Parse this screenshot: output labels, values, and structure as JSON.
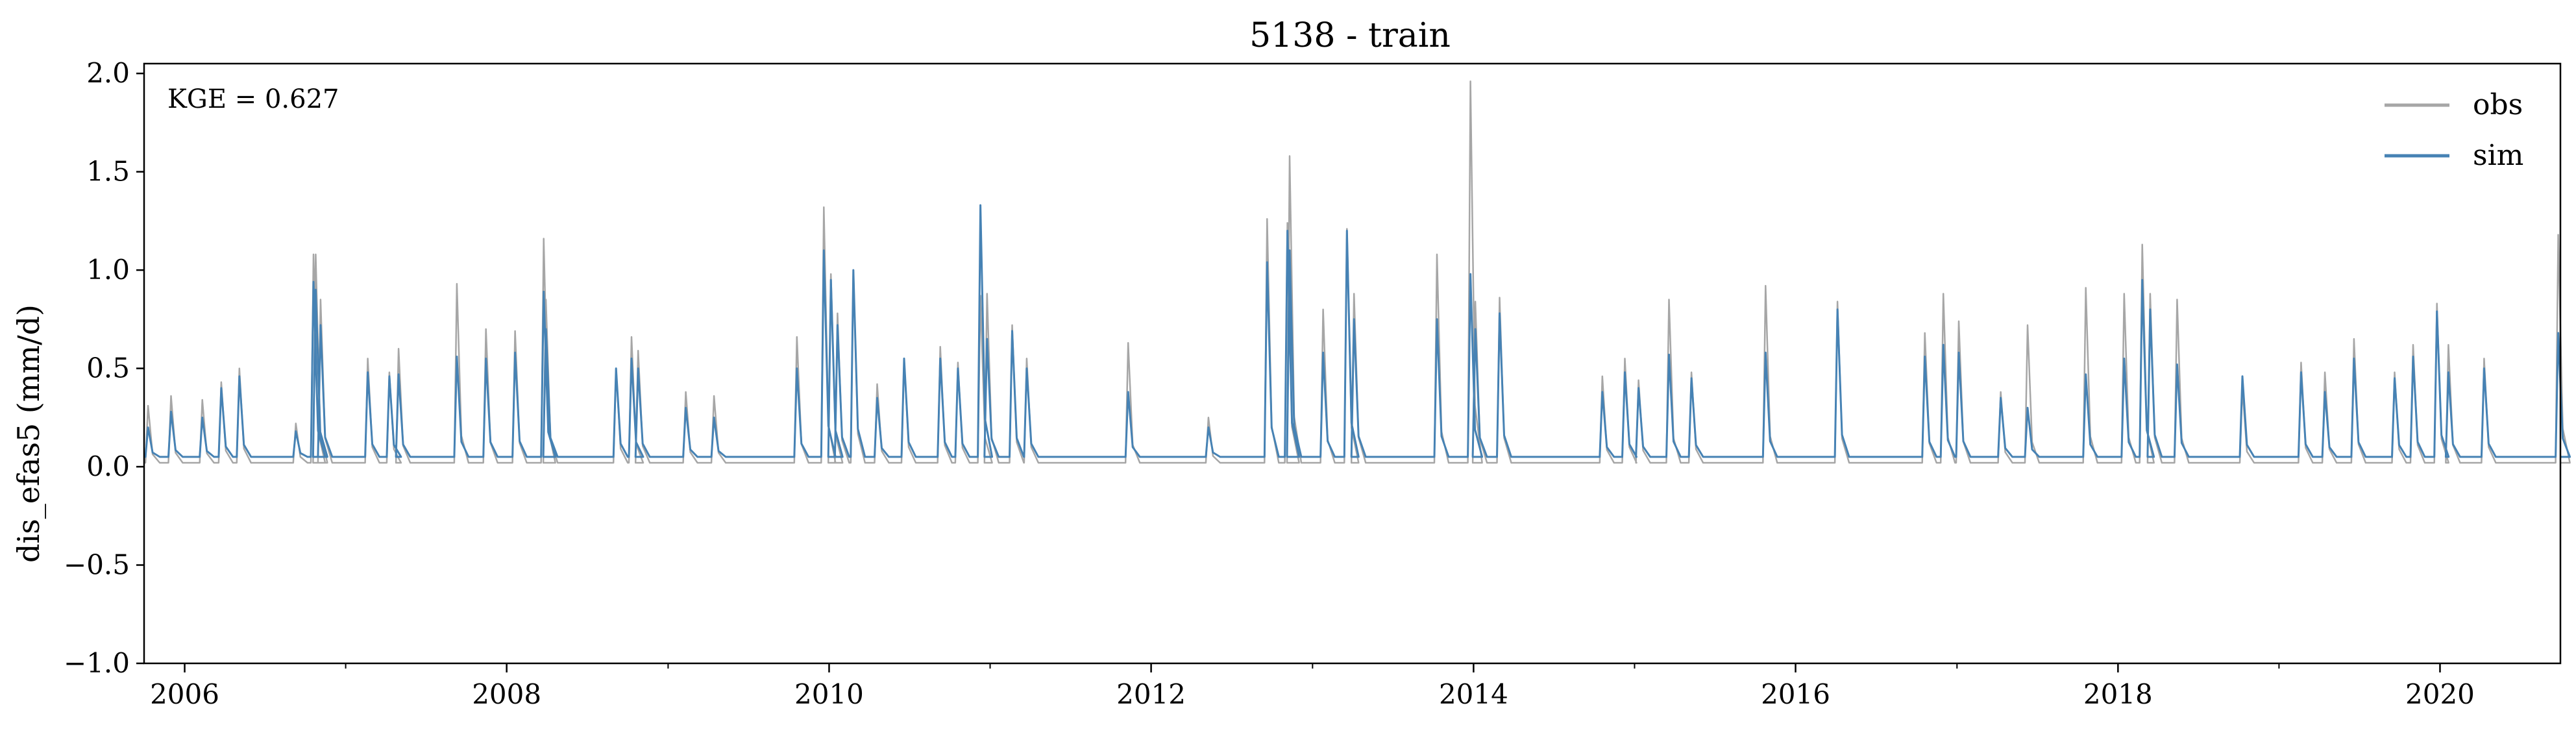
{
  "chart_data": {
    "type": "line",
    "title": "5138 - train",
    "xlabel": "",
    "ylabel": "dis_efas5 (mm/d)",
    "annotation": "KGE = 0.627",
    "xlim": [
      "2005-10-01",
      "2020-09-30"
    ],
    "ylim": [
      -1.0,
      2.05
    ],
    "grid": false,
    "legend": "top-right",
    "x_ticks": [
      "2006",
      "2008",
      "2010",
      "2012",
      "2014",
      "2016",
      "2018",
      "2020"
    ],
    "y_ticks": [
      "−1.0",
      "−0.5",
      "0.0",
      "0.5",
      "1.0",
      "1.5",
      "2.0"
    ],
    "y_tick_values": [
      -1.0,
      -0.5,
      0.0,
      0.5,
      1.0,
      1.5,
      2.0
    ],
    "base_flow": {
      "obs": 0.02,
      "sim": 0.05
    },
    "series": [
      {
        "name": "obs",
        "color": "#a6a6a6",
        "points": [
          [
            "2005-10-10",
            0.31
          ],
          [
            "2005-12-01",
            0.36
          ],
          [
            "2006-02-10",
            0.34
          ],
          [
            "2006-03-25",
            0.43
          ],
          [
            "2006-05-05",
            0.5
          ],
          [
            "2006-09-10",
            0.22
          ],
          [
            "2006-10-20",
            1.08
          ],
          [
            "2006-10-25",
            1.08
          ],
          [
            "2006-11-05",
            0.85
          ],
          [
            "2007-02-20",
            0.55
          ],
          [
            "2007-04-10",
            0.48
          ],
          [
            "2007-05-01",
            0.6
          ],
          [
            "2007-09-10",
            0.93
          ],
          [
            "2007-11-15",
            0.7
          ],
          [
            "2008-01-20",
            0.69
          ],
          [
            "2008-03-25",
            1.16
          ],
          [
            "2008-03-30",
            0.85
          ],
          [
            "2008-09-05",
            0.5
          ],
          [
            "2008-10-10",
            0.66
          ],
          [
            "2008-10-25",
            0.59
          ],
          [
            "2009-02-10",
            0.38
          ],
          [
            "2009-04-15",
            0.36
          ],
          [
            "2009-10-20",
            0.66
          ],
          [
            "2009-12-20",
            1.32
          ],
          [
            "2010-01-05",
            0.98
          ],
          [
            "2010-01-20",
            0.78
          ],
          [
            "2010-02-25",
            1.0
          ],
          [
            "2010-04-20",
            0.42
          ],
          [
            "2010-06-20",
            0.55
          ],
          [
            "2010-09-10",
            0.61
          ],
          [
            "2010-10-20",
            0.53
          ],
          [
            "2010-12-10",
            0.87
          ],
          [
            "2010-12-25",
            0.88
          ],
          [
            "2011-02-20",
            0.72
          ],
          [
            "2011-03-25",
            0.55
          ],
          [
            "2011-11-10",
            0.63
          ],
          [
            "2012-05-10",
            0.25
          ],
          [
            "2012-09-20",
            1.26
          ],
          [
            "2012-11-05",
            1.24
          ],
          [
            "2012-11-10",
            1.58
          ],
          [
            "2013-01-25",
            0.8
          ],
          [
            "2013-03-20",
            1.21
          ],
          [
            "2013-04-05",
            0.88
          ],
          [
            "2013-10-10",
            1.08
          ],
          [
            "2013-12-25",
            1.96
          ],
          [
            "2014-01-05",
            0.84
          ],
          [
            "2014-03-01",
            0.86
          ],
          [
            "2014-10-20",
            0.46
          ],
          [
            "2014-12-10",
            0.55
          ],
          [
            "2015-01-10",
            0.44
          ],
          [
            "2015-03-20",
            0.85
          ],
          [
            "2015-05-10",
            0.48
          ],
          [
            "2015-10-25",
            0.92
          ],
          [
            "2016-04-05",
            0.84
          ],
          [
            "2016-10-20",
            0.68
          ],
          [
            "2016-12-01",
            0.88
          ],
          [
            "2017-01-05",
            0.74
          ],
          [
            "2017-04-10",
            0.38
          ],
          [
            "2017-06-10",
            0.72
          ],
          [
            "2017-10-20",
            0.91
          ],
          [
            "2018-01-15",
            0.88
          ],
          [
            "2018-02-25",
            1.13
          ],
          [
            "2018-03-15",
            0.88
          ],
          [
            "2018-05-15",
            0.85
          ],
          [
            "2018-10-10",
            0.4
          ],
          [
            "2019-02-20",
            0.53
          ],
          [
            "2019-04-15",
            0.48
          ],
          [
            "2019-06-20",
            0.65
          ],
          [
            "2019-09-20",
            0.48
          ],
          [
            "2019-11-01",
            0.62
          ],
          [
            "2019-12-25",
            0.83
          ],
          [
            "2020-01-20",
            0.62
          ],
          [
            "2020-04-10",
            0.55
          ],
          [
            "2020-09-25",
            1.18
          ]
        ]
      },
      {
        "name": "sim",
        "color": "#4682b4",
        "points": [
          [
            "2005-10-10",
            0.2
          ],
          [
            "2005-12-01",
            0.28
          ],
          [
            "2006-02-10",
            0.25
          ],
          [
            "2006-03-25",
            0.4
          ],
          [
            "2006-05-05",
            0.46
          ],
          [
            "2006-09-10",
            0.18
          ],
          [
            "2006-10-20",
            0.94
          ],
          [
            "2006-10-25",
            0.9
          ],
          [
            "2006-11-05",
            0.72
          ],
          [
            "2007-02-20",
            0.48
          ],
          [
            "2007-04-10",
            0.46
          ],
          [
            "2007-05-01",
            0.47
          ],
          [
            "2007-09-10",
            0.56
          ],
          [
            "2007-11-15",
            0.55
          ],
          [
            "2008-01-20",
            0.58
          ],
          [
            "2008-03-25",
            0.89
          ],
          [
            "2008-03-30",
            0.7
          ],
          [
            "2008-09-05",
            0.5
          ],
          [
            "2008-10-10",
            0.55
          ],
          [
            "2008-10-25",
            0.5
          ],
          [
            "2009-02-10",
            0.3
          ],
          [
            "2009-04-15",
            0.25
          ],
          [
            "2009-10-20",
            0.5
          ],
          [
            "2009-12-20",
            1.1
          ],
          [
            "2010-01-05",
            0.95
          ],
          [
            "2010-01-20",
            0.72
          ],
          [
            "2010-02-25",
            1.0
          ],
          [
            "2010-04-20",
            0.35
          ],
          [
            "2010-06-20",
            0.55
          ],
          [
            "2010-09-10",
            0.55
          ],
          [
            "2010-10-20",
            0.5
          ],
          [
            "2010-12-10",
            1.33
          ],
          [
            "2010-12-25",
            0.65
          ],
          [
            "2011-02-20",
            0.69
          ],
          [
            "2011-03-25",
            0.5
          ],
          [
            "2011-11-10",
            0.38
          ],
          [
            "2012-05-10",
            0.2
          ],
          [
            "2012-09-20",
            1.04
          ],
          [
            "2012-11-05",
            1.2
          ],
          [
            "2012-11-10",
            1.1
          ],
          [
            "2013-01-25",
            0.58
          ],
          [
            "2013-03-20",
            1.2
          ],
          [
            "2013-04-05",
            0.75
          ],
          [
            "2013-10-10",
            0.75
          ],
          [
            "2013-12-25",
            0.98
          ],
          [
            "2014-01-05",
            0.7
          ],
          [
            "2014-03-01",
            0.78
          ],
          [
            "2014-10-20",
            0.38
          ],
          [
            "2014-12-10",
            0.48
          ],
          [
            "2015-01-10",
            0.4
          ],
          [
            "2015-03-20",
            0.57
          ],
          [
            "2015-05-10",
            0.45
          ],
          [
            "2015-10-25",
            0.58
          ],
          [
            "2016-04-05",
            0.8
          ],
          [
            "2016-10-20",
            0.56
          ],
          [
            "2016-12-01",
            0.62
          ],
          [
            "2017-01-05",
            0.58
          ],
          [
            "2017-04-10",
            0.35
          ],
          [
            "2017-06-10",
            0.3
          ],
          [
            "2017-10-20",
            0.47
          ],
          [
            "2018-01-15",
            0.55
          ],
          [
            "2018-02-25",
            0.95
          ],
          [
            "2018-03-15",
            0.8
          ],
          [
            "2018-05-15",
            0.52
          ],
          [
            "2018-10-10",
            0.46
          ],
          [
            "2019-02-20",
            0.48
          ],
          [
            "2019-04-15",
            0.38
          ],
          [
            "2019-06-20",
            0.55
          ],
          [
            "2019-09-20",
            0.45
          ],
          [
            "2019-11-01",
            0.56
          ],
          [
            "2019-12-25",
            0.79
          ],
          [
            "2020-01-20",
            0.48
          ],
          [
            "2020-04-10",
            0.5
          ],
          [
            "2020-09-25",
            0.68
          ]
        ]
      }
    ]
  }
}
